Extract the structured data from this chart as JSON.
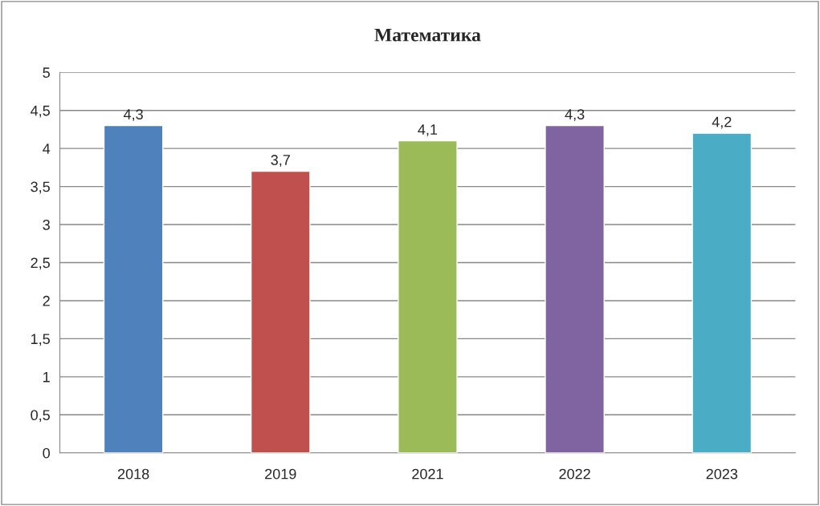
{
  "chart_data": {
    "type": "bar",
    "title": "Математика",
    "categories": [
      "2018",
      "2019",
      "2021",
      "2022",
      "2023"
    ],
    "values": [
      4.3,
      3.7,
      4.1,
      4.3,
      4.2
    ],
    "colors": [
      "#4f81bd",
      "#c0504d",
      "#9bbb59",
      "#8064a2",
      "#4bacc6"
    ],
    "value_labels": [
      "4,3",
      "3,7",
      "4,1",
      "4,3",
      "4,2"
    ],
    "ylim": [
      0,
      5
    ],
    "yticks": [
      0,
      {
        "value": 0.5,
        "label": "0,5"
      },
      1,
      {
        "value": 1.5,
        "label": "1,5"
      },
      2,
      {
        "value": 2.5,
        "label": "2,5"
      },
      3,
      {
        "value": 3.5,
        "label": "3,5"
      },
      4,
      {
        "value": 4.5,
        "label": "4,5"
      },
      5
    ],
    "grid": "y",
    "legend": false
  }
}
